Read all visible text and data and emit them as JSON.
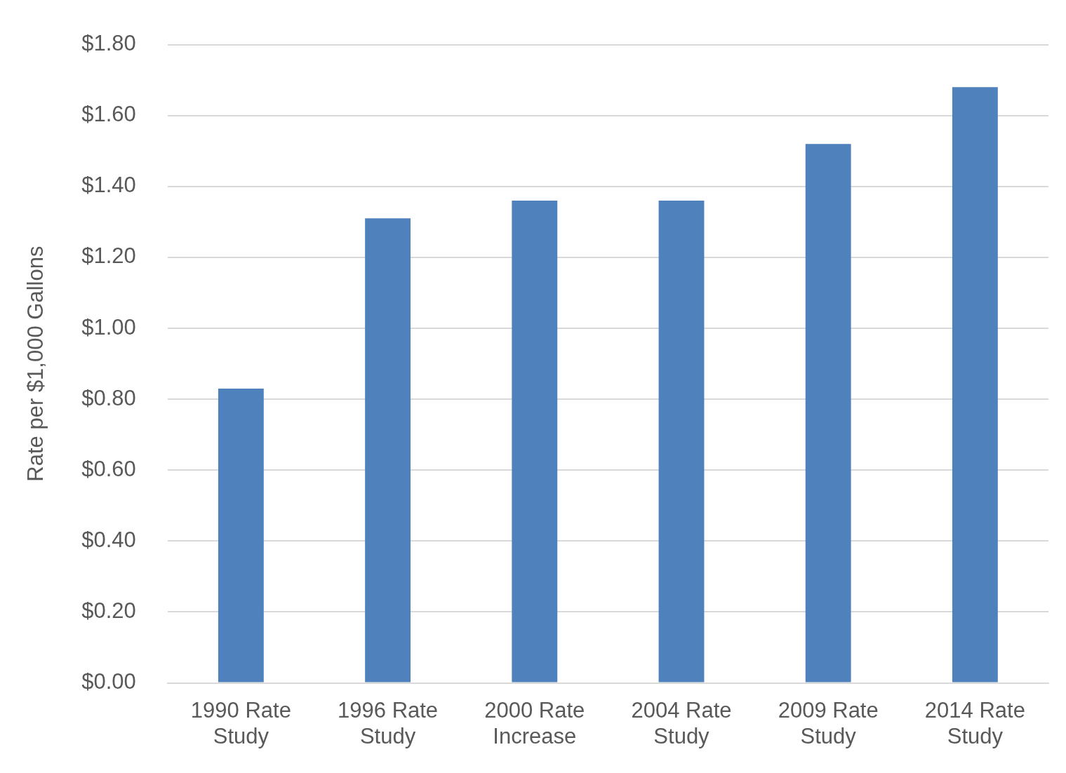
{
  "chart_data": {
    "type": "bar",
    "ylabel": "Rate per $1,000 Gallons",
    "categories": [
      "1990 Rate Study",
      "1996 Rate Study",
      "2000 Rate Increase",
      "2004 Rate Study",
      "2009 Rate Study",
      "2014 Rate Study"
    ],
    "values": [
      0.83,
      1.31,
      1.36,
      1.36,
      1.52,
      1.68
    ],
    "color": "#4f81bd",
    "ylim": [
      0,
      1.8
    ],
    "yticks": [
      {
        "value": 0,
        "label": "$0.00"
      },
      {
        "value": 0.2,
        "label": "$0.20"
      },
      {
        "value": 0.4,
        "label": "$0.40"
      },
      {
        "value": 0.6,
        "label": "$0.60"
      },
      {
        "value": 0.8,
        "label": "$0.80"
      },
      {
        "value": 1,
        "label": "$1.00"
      },
      {
        "value": 1.2,
        "label": "$1.20"
      },
      {
        "value": 1.4,
        "label": "$1.40"
      },
      {
        "value": 1.6,
        "label": "$1.60"
      },
      {
        "value": 1.8,
        "label": "$1.80"
      }
    ],
    "grid": "y",
    "legend": false
  }
}
